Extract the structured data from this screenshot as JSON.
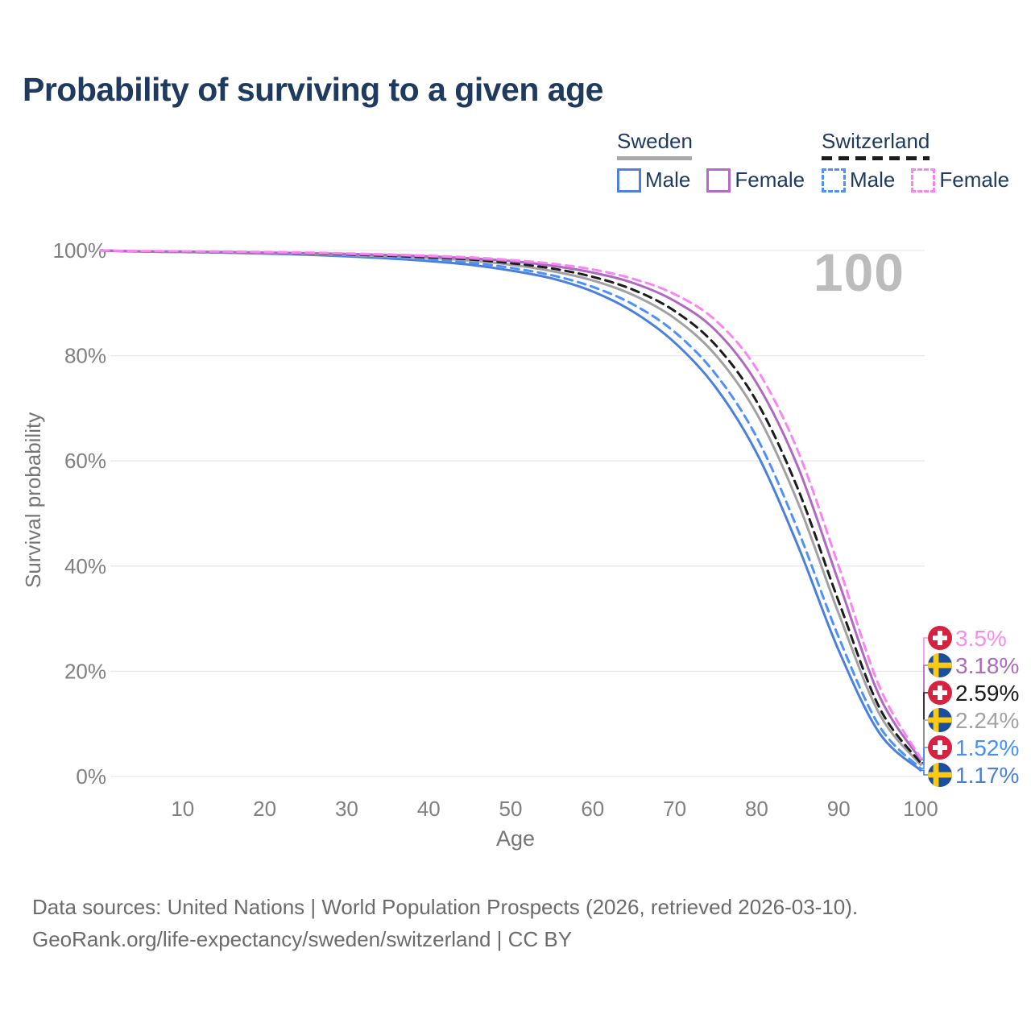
{
  "header": {
    "title": "Probability of surviving to a given age"
  },
  "legend": {
    "groups": [
      {
        "id": "sweden",
        "label": "Sweden",
        "line_style": "solid",
        "line_color": "#a8a8a8",
        "items": [
          {
            "label": "Male",
            "box_style": "solid",
            "box_color": "#4f81d8"
          },
          {
            "label": "Female",
            "box_style": "solid",
            "box_color": "#b16cc3"
          }
        ]
      },
      {
        "id": "switzerland",
        "label": "Switzerland",
        "line_style": "dashed",
        "line_color": "#1c1c1c",
        "items": [
          {
            "label": "Male",
            "box_style": "dashed",
            "box_color": "#4d90fe"
          },
          {
            "label": "Female",
            "box_style": "dashed",
            "box_color": "#fb84f3"
          }
        ]
      }
    ]
  },
  "chart_data": {
    "type": "line",
    "title": "Probability of surviving to a given age",
    "xlabel": "Age",
    "ylabel": "Survival probability",
    "xlim": [
      0,
      100
    ],
    "ylim": [
      0,
      100
    ],
    "grid": "horizontal",
    "legend_position": "top-right",
    "age_indicator": "100",
    "x_ticks": [
      10,
      20,
      30,
      40,
      50,
      60,
      70,
      80,
      90,
      100
    ],
    "y_ticks": [
      {
        "value": 100,
        "label": "100%"
      },
      {
        "value": 80,
        "label": "80%"
      },
      {
        "value": 60,
        "label": "60%"
      },
      {
        "value": 40,
        "label": "40%"
      },
      {
        "value": 20,
        "label": "20%"
      },
      {
        "value": 0,
        "label": "0%"
      }
    ],
    "ages": [
      0,
      5,
      10,
      15,
      20,
      25,
      30,
      35,
      40,
      45,
      50,
      55,
      60,
      65,
      70,
      75,
      80,
      85,
      90,
      95,
      100
    ],
    "series": [
      {
        "name": "Sweden Male",
        "country": "sweden",
        "sex": "male",
        "style": "solid",
        "color": "#4a80dd",
        "label_color": "#4a81d8",
        "end_label": "1.17%",
        "end_value": 1.17,
        "flag_icon": "sweden-flag-icon",
        "values": [
          100,
          99.8,
          99.7,
          99.6,
          99.4,
          99.2,
          98.9,
          98.5,
          98.0,
          97.3,
          96.2,
          94.7,
          92.2,
          88.3,
          82.5,
          74.0,
          61.5,
          44.0,
          24.0,
          8.2,
          1.17
        ]
      },
      {
        "name": "Switzerland Male",
        "country": "switzerland",
        "sex": "male",
        "style": "dashed",
        "color": "#4d90fe",
        "label_color": "#4490fb",
        "end_label": "1.52%",
        "end_value": 1.52,
        "flag_icon": "swiss-flag-icon",
        "values": [
          100,
          99.8,
          99.7,
          99.6,
          99.5,
          99.3,
          99.0,
          98.7,
          98.3,
          97.7,
          96.7,
          95.3,
          93.1,
          89.7,
          84.5,
          76.5,
          64.5,
          47.0,
          26.5,
          9.5,
          1.52
        ]
      },
      {
        "name": "Sweden Total",
        "country": "sweden",
        "sex": "total",
        "style": "solid",
        "color": "#a2a2a4",
        "label_color": "#a2a2a2",
        "end_label": "2.24%",
        "end_value": 2.24,
        "flag_icon": "sweden-flag-icon",
        "values": [
          100,
          99.8,
          99.7,
          99.65,
          99.5,
          99.35,
          99.15,
          98.9,
          98.6,
          98.1,
          97.3,
          96.1,
          94.3,
          91.5,
          87.1,
          80.1,
          69.0,
          52.2,
          31.0,
          11.8,
          2.24
        ]
      },
      {
        "name": "Switzerland Total",
        "country": "switzerland",
        "sex": "total",
        "style": "dashed",
        "color": "#1c1c1c",
        "label_color": "#1a1a1a",
        "end_label": "2.59%",
        "end_value": 2.59,
        "flag_icon": "swiss-flag-icon",
        "values": [
          100,
          99.85,
          99.8,
          99.7,
          99.6,
          99.45,
          99.25,
          99.0,
          98.7,
          98.3,
          97.6,
          96.6,
          95.0,
          92.5,
          88.5,
          82.0,
          71.3,
          54.8,
          33.3,
          13.0,
          2.59
        ]
      },
      {
        "name": "Sweden Female",
        "country": "sweden",
        "sex": "female",
        "style": "solid",
        "color": "#ae69c1",
        "label_color": "#ab6cb8",
        "end_label": "3.18%",
        "end_value": 3.18,
        "flag_icon": "sweden-flag-icon",
        "values": [
          100,
          99.85,
          99.8,
          99.7,
          99.6,
          99.5,
          99.35,
          99.15,
          98.9,
          98.5,
          98.0,
          97.1,
          95.8,
          93.8,
          90.4,
          84.8,
          74.8,
          59.0,
          37.0,
          15.2,
          3.18
        ]
      },
      {
        "name": "Switzerland Female",
        "country": "switzerland",
        "sex": "female",
        "style": "dashed",
        "color": "#fb84f3",
        "label_color": "#f78df0",
        "end_label": "3.5%",
        "end_value": 3.5,
        "flag_icon": "swiss-flag-icon",
        "values": [
          100,
          99.9,
          99.85,
          99.8,
          99.7,
          99.6,
          99.45,
          99.25,
          99.0,
          98.7,
          98.2,
          97.5,
          96.4,
          94.6,
          91.7,
          86.7,
          77.5,
          62.0,
          40.0,
          17.0,
          3.5
        ]
      }
    ],
    "flag_colors": {
      "swiss_red": "#d8213f",
      "swiss_cross": "#ffffff",
      "sweden_blue": "#1b4f9e",
      "sweden_cross": "#fdc913"
    },
    "grid_color": "#e9e9e9",
    "tick_color": "#808080"
  },
  "footer": {
    "line1": "Data sources: United Nations | World Population Prospects (2026, retrieved 2026-03-10).",
    "line2": "GeoRank.org/life-expectancy/sweden/switzerland | CC BY"
  }
}
